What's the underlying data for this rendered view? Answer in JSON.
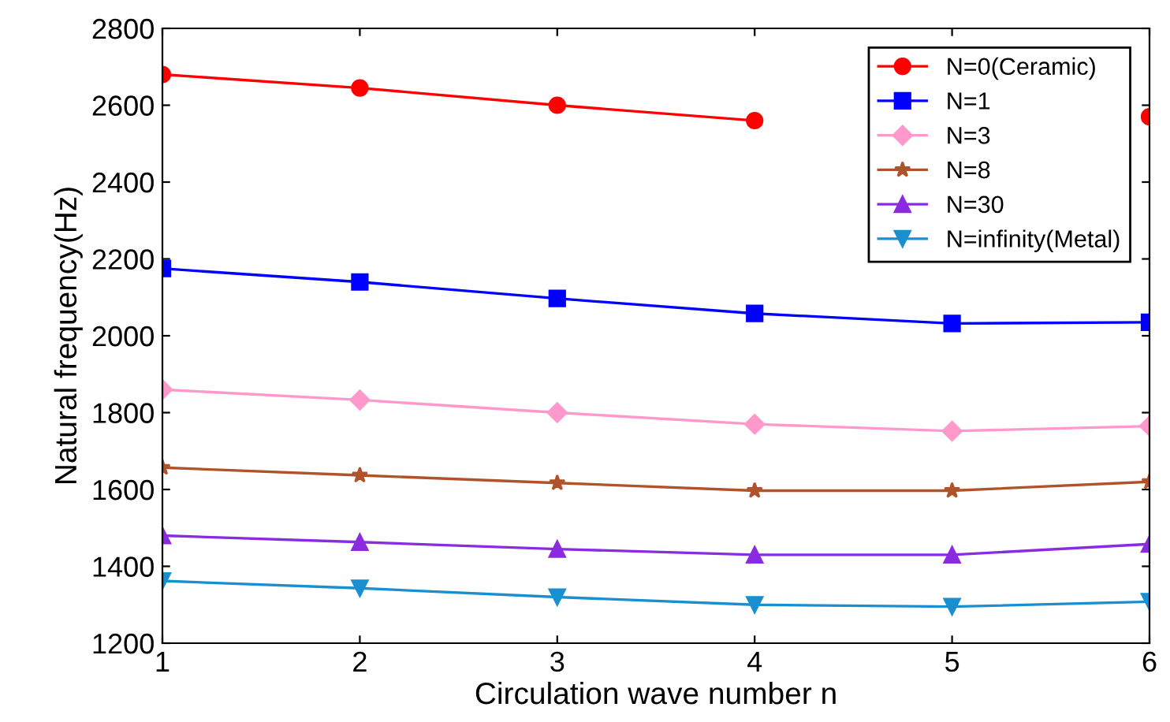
{
  "chart_data": {
    "type": "line",
    "xlabel": "Circulation wave number n",
    "ylabel": "Natural frequency(Hz)",
    "x": [
      1,
      2,
      3,
      4,
      5,
      6
    ],
    "series": [
      {
        "name": "N=0(Ceramic)",
        "color": "#ff0000",
        "marker": "circle",
        "values": [
          2680,
          2645,
          2600,
          2560,
          null,
          2570
        ]
      },
      {
        "name": "N=1",
        "color": "#0000ff",
        "marker": "square",
        "values": [
          2175,
          2140,
          2097,
          2058,
          2032,
          2035
        ]
      },
      {
        "name": "N=3",
        "color": "#ff99cc",
        "marker": "diamond",
        "values": [
          1860,
          1833,
          1800,
          1770,
          1752,
          1765
        ]
      },
      {
        "name": "N=8",
        "color": "#b0522a",
        "marker": "star",
        "values": [
          1657,
          1637,
          1617,
          1597,
          1597,
          1620
        ]
      },
      {
        "name": "N=30",
        "color": "#8a2be2",
        "marker": "triangle",
        "values": [
          1480,
          1463,
          1445,
          1430,
          1430,
          1458
        ]
      },
      {
        "name": "N=infinity(Metal)",
        "color": "#1a8fd0",
        "marker": "triangle_down",
        "values": [
          1362,
          1343,
          1320,
          1300,
          1295,
          1308
        ]
      }
    ],
    "xlim": [
      1,
      6
    ],
    "xticks": [
      1,
      2,
      3,
      4,
      5,
      6
    ],
    "ylim": [
      1200,
      2800
    ],
    "yticks": [
      1200,
      1400,
      1600,
      1800,
      2000,
      2200,
      2400,
      2600,
      2800
    ],
    "grid": false,
    "legend": "top right"
  }
}
